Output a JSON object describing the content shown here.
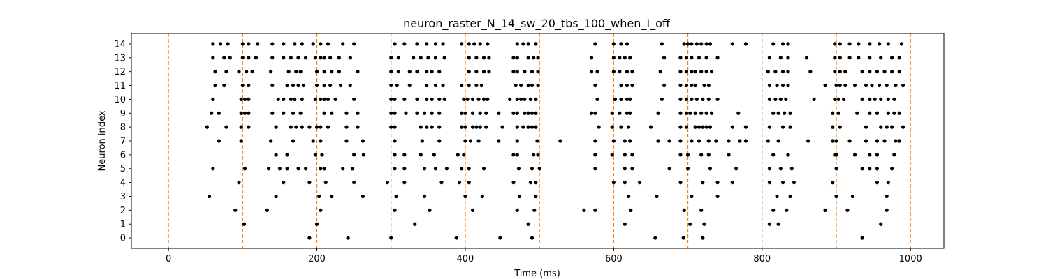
{
  "chart_data": {
    "type": "scatter",
    "title": "neuron_raster_N_14_sw_20_tbs_100_when_I_off",
    "xlabel": "Time (ms)",
    "ylabel": "Neuron index",
    "xlim": [
      -50,
      1045
    ],
    "ylim": [
      -0.75,
      14.75
    ],
    "xticks": [
      0,
      200,
      400,
      600,
      800,
      1000
    ],
    "yticks": [
      0,
      1,
      2,
      3,
      4,
      5,
      6,
      7,
      8,
      9,
      10,
      11,
      12,
      13,
      14
    ],
    "grid": false,
    "marker_color": "#000000",
    "vline_color": "#ff7f0e",
    "vlines": [
      0,
      100,
      200,
      300,
      400,
      500,
      600,
      700,
      800,
      900,
      1000
    ],
    "spikes": [
      [
        190,
        242,
        300,
        388,
        447,
        490,
        656,
        694,
        720,
        935
      ],
      [
        102,
        200,
        332,
        485,
        615,
        703,
        722,
        810,
        822,
        960
      ],
      [
        90,
        133,
        205,
        305,
        352,
        410,
        470,
        493,
        560,
        575,
        623,
        695,
        718,
        815,
        833,
        885,
        915,
        968
      ],
      [
        55,
        145,
        203,
        220,
        262,
        307,
        345,
        400,
        423,
        473,
        495,
        620,
        658,
        705,
        740,
        820,
        838,
        900,
        922,
        968
      ],
      [
        95,
        155,
        190,
        212,
        250,
        295,
        318,
        368,
        392,
        405,
        465,
        488,
        495,
        600,
        615,
        635,
        690,
        720,
        740,
        760,
        810,
        828,
        843,
        895,
        955,
        970
      ],
      [
        60,
        103,
        135,
        150,
        160,
        175,
        185,
        205,
        210,
        235,
        248,
        305,
        318,
        345,
        360,
        375,
        395,
        405,
        425,
        472,
        490,
        500,
        575,
        615,
        625,
        675,
        700,
        730,
        765,
        810,
        825,
        840,
        900,
        935,
        945,
        955,
        975
      ],
      [
        145,
        160,
        198,
        207,
        250,
        263,
        305,
        318,
        340,
        358,
        390,
        398,
        465,
        470,
        492,
        498,
        575,
        598,
        615,
        625,
        690,
        700,
        718,
        728,
        755,
        815,
        835,
        898,
        900,
        925,
        945,
        955,
        978
      ],
      [
        68,
        98,
        138,
        168,
        195,
        205,
        240,
        262,
        305,
        342,
        365,
        400,
        407,
        418,
        445,
        470,
        497,
        528,
        575,
        600,
        615,
        622,
        660,
        675,
        690,
        705,
        715,
        728,
        738,
        755,
        770,
        778,
        808,
        822,
        862,
        895,
        900,
        918,
        940,
        955,
        965,
        980,
        985
      ],
      [
        52,
        78,
        98,
        108,
        145,
        165,
        172,
        180,
        190,
        200,
        205,
        215,
        240,
        255,
        300,
        305,
        340,
        348,
        355,
        365,
        395,
        400,
        410,
        415,
        420,
        428,
        450,
        470,
        478,
        485,
        490,
        495,
        580,
        598,
        610,
        620,
        650,
        690,
        698,
        710,
        715,
        720,
        725,
        730,
        760,
        778,
        810,
        828,
        838,
        895,
        905,
        940,
        960,
        968,
        975,
        990
      ],
      [
        58,
        68,
        98,
        103,
        108,
        140,
        155,
        168,
        178,
        210,
        220,
        240,
        255,
        300,
        305,
        320,
        335,
        345,
        355,
        365,
        395,
        400,
        410,
        420,
        428,
        445,
        465,
        470,
        480,
        485,
        490,
        495,
        570,
        575,
        598,
        608,
        618,
        622,
        660,
        690,
        698,
        703,
        710,
        718,
        725,
        732,
        768,
        815,
        822,
        830,
        838,
        895,
        903,
        928,
        945,
        955,
        970,
        978,
        985
      ],
      [
        60,
        98,
        103,
        108,
        148,
        155,
        165,
        170,
        180,
        198,
        205,
        210,
        215,
        225,
        250,
        300,
        305,
        318,
        335,
        348,
        355,
        365,
        372,
        398,
        403,
        410,
        418,
        425,
        430,
        460,
        470,
        475,
        480,
        488,
        495,
        578,
        602,
        610,
        618,
        622,
        665,
        690,
        698,
        705,
        712,
        720,
        728,
        740,
        810,
        818,
        825,
        832,
        870,
        898,
        903,
        910,
        935,
        945,
        952,
        960,
        970,
        978
      ],
      [
        63,
        75,
        100,
        108,
        140,
        160,
        168,
        175,
        182,
        200,
        210,
        218,
        232,
        245,
        300,
        308,
        325,
        348,
        360,
        370,
        395,
        405,
        415,
        422,
        468,
        475,
        485,
        490,
        498,
        575,
        610,
        618,
        625,
        668,
        690,
        698,
        705,
        710,
        722,
        728,
        810,
        820,
        828,
        835,
        885,
        900,
        905,
        912,
        925,
        940,
        948,
        958,
        968,
        980,
        990
      ],
      [
        63,
        78,
        95,
        105,
        113,
        138,
        162,
        172,
        178,
        200,
        210,
        220,
        230,
        255,
        300,
        310,
        325,
        335,
        348,
        355,
        365,
        405,
        415,
        425,
        432,
        465,
        470,
        480,
        490,
        498,
        570,
        578,
        600,
        608,
        618,
        625,
        663,
        690,
        698,
        705,
        710,
        718,
        725,
        732,
        808,
        818,
        828,
        835,
        865,
        898,
        905,
        912,
        935,
        945,
        955,
        965,
        975,
        985
      ],
      [
        60,
        75,
        83,
        100,
        108,
        118,
        140,
        155,
        165,
        175,
        185,
        198,
        205,
        210,
        218,
        230,
        245,
        300,
        310,
        330,
        340,
        350,
        360,
        372,
        405,
        415,
        425,
        432,
        465,
        470,
        485,
        492,
        498,
        570,
        600,
        608,
        615,
        622,
        668,
        690,
        698,
        705,
        715,
        725,
        740,
        810,
        825,
        835,
        860,
        898,
        905,
        918,
        930,
        945,
        960,
        975,
        985
      ],
      [
        60,
        70,
        80,
        100,
        108,
        120,
        140,
        155,
        170,
        180,
        195,
        205,
        215,
        235,
        250,
        305,
        318,
        335,
        348,
        360,
        370,
        395,
        405,
        412,
        420,
        430,
        470,
        478,
        485,
        495,
        575,
        600,
        610,
        618,
        665,
        695,
        700,
        705,
        712,
        718,
        725,
        730,
        760,
        778,
        815,
        828,
        835,
        898,
        905,
        918,
        930,
        945,
        958,
        970,
        988
      ]
    ]
  }
}
